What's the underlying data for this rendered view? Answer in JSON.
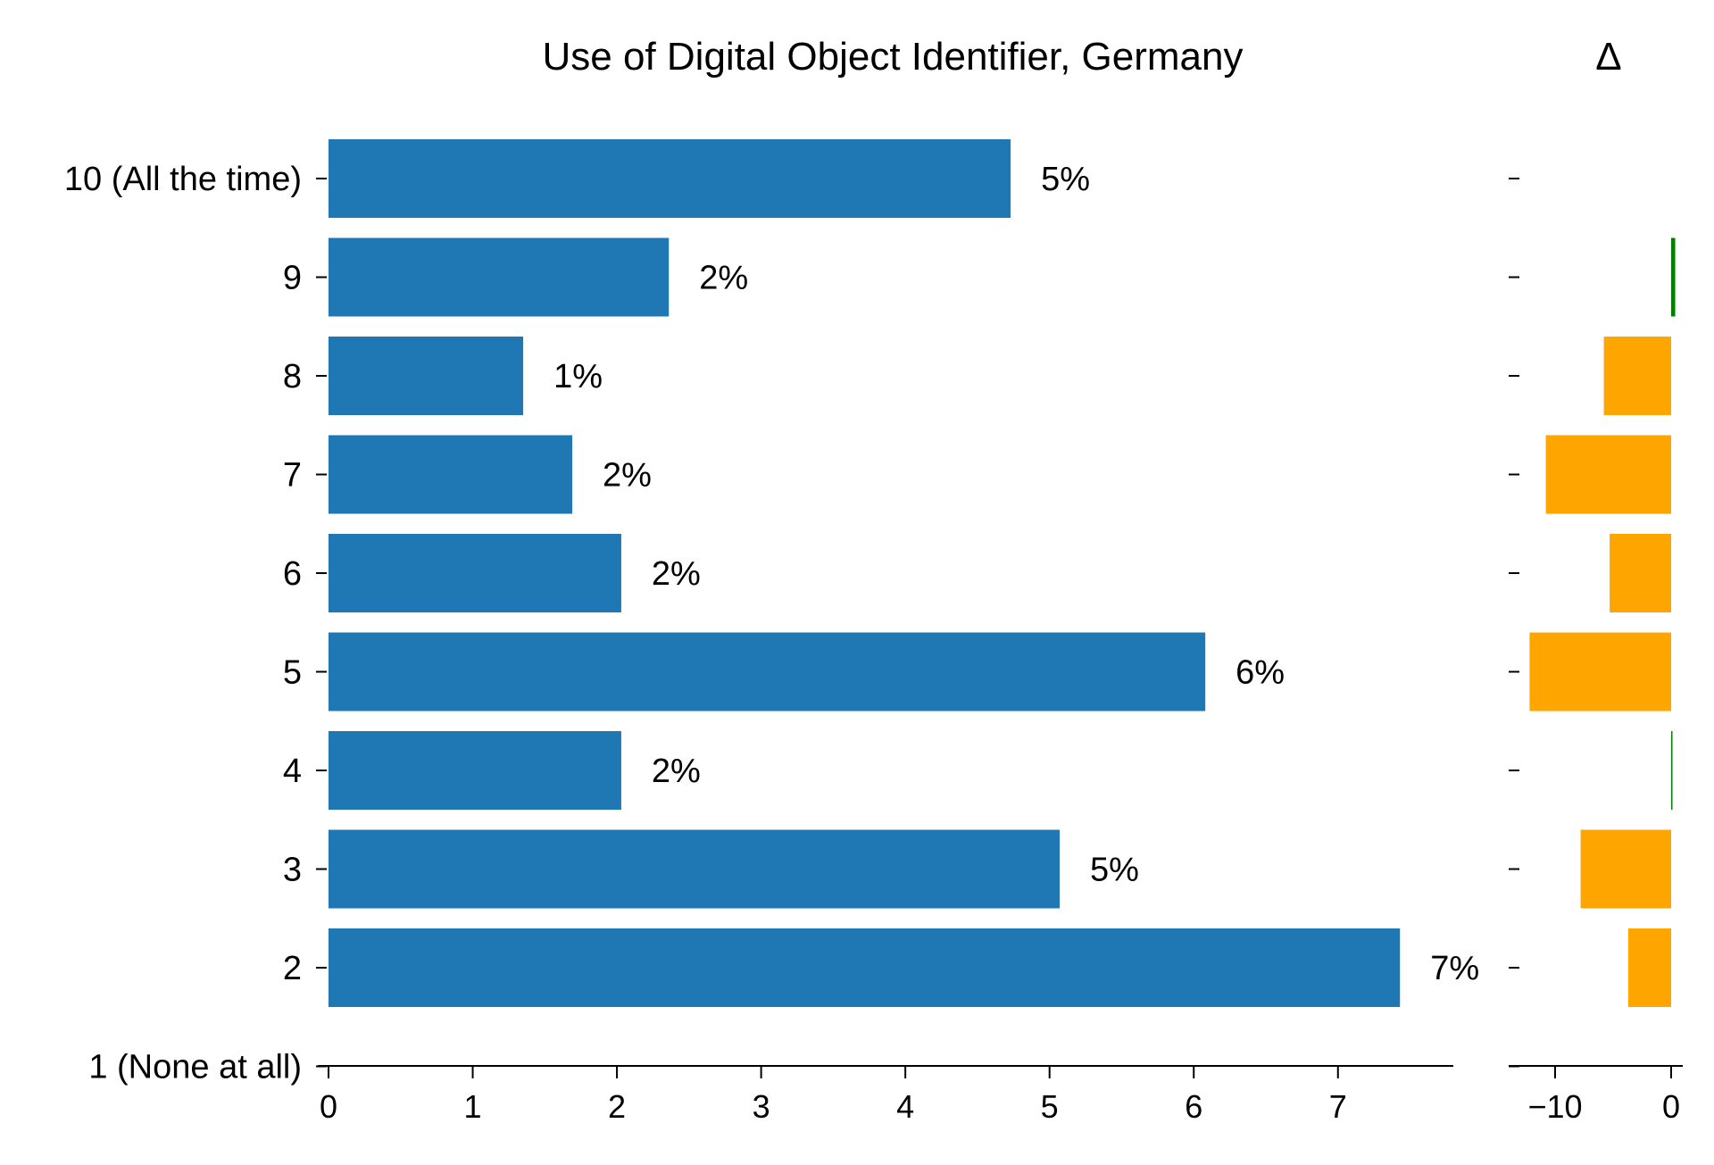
{
  "chart_data": [
    {
      "type": "bar",
      "orientation": "horizontal",
      "title": "Use of Digital Object Identifier, Germany",
      "categories": [
        "10 (All the time)",
        "9",
        "8",
        "7",
        "6",
        "5",
        "4",
        "3",
        "2",
        "1 (None at all)"
      ],
      "values": [
        4.73,
        2.36,
        1.35,
        1.69,
        2.03,
        6.08,
        2.03,
        5.07,
        7.43,
        null
      ],
      "value_labels": [
        "5%",
        "2%",
        "1%",
        "2%",
        "2%",
        "6%",
        "2%",
        "5%",
        "7%",
        ""
      ],
      "xlim": [
        0,
        7.8
      ],
      "xticks": [
        0,
        1,
        2,
        3,
        4,
        5,
        6,
        7
      ],
      "bar_color": "#1f77b4",
      "grid": false,
      "legend": "none"
    },
    {
      "type": "bar",
      "orientation": "horizontal",
      "title": "Δ",
      "categories": [
        "10 (All the time)",
        "9",
        "8",
        "7",
        "6",
        "5",
        "4",
        "3",
        "2",
        "1 (None at all)"
      ],
      "values": [
        null,
        0.35,
        -5.8,
        -10.8,
        -5.3,
        -12.2,
        0.08,
        -7.8,
        -3.7,
        null
      ],
      "xlim": [
        -14,
        1
      ],
      "xticks": [
        -10,
        0
      ],
      "xtick_labels": [
        "−10",
        "0"
      ],
      "positive_color": "#008000",
      "negative_color": "#ffa500",
      "grid": false,
      "legend": "none"
    }
  ]
}
